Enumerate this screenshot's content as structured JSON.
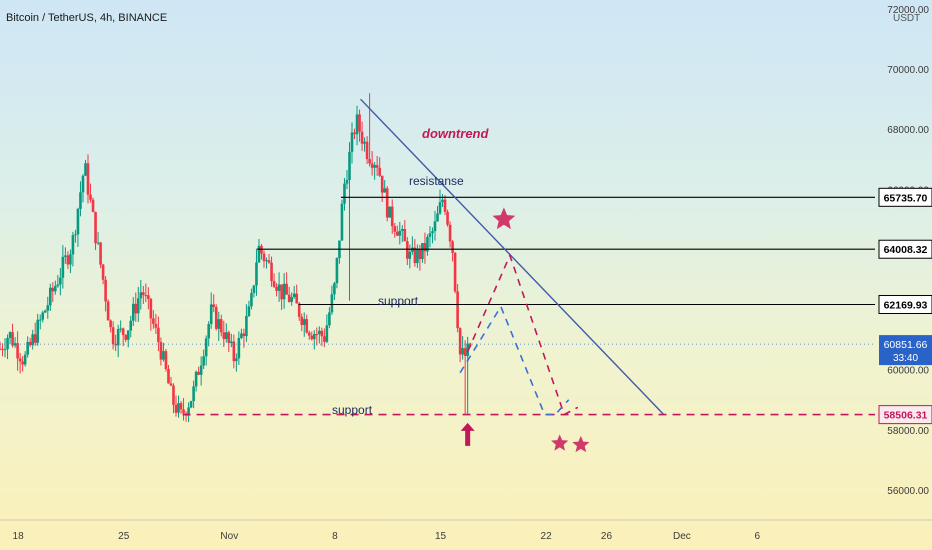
{
  "header": {
    "title": "Bitcoin / TetherUS, 4h, BINANCE",
    "currency": "USDT"
  },
  "chart_data": {
    "type": "candlestick",
    "symbol": "Bitcoin / TetherUS",
    "timeframe": "4h",
    "exchange": "BINANCE",
    "currency": "USDT",
    "y_axis": {
      "ticks": [
        56000,
        58000,
        60000,
        62000,
        64000,
        66000,
        68000,
        70000,
        72000
      ],
      "tick_labels": [
        "56000.00",
        "58000.00",
        "60000.00",
        "62000.00",
        "64000.00",
        "66000.00",
        "68000.00",
        "70000.00",
        "72000.00"
      ],
      "range": [
        55000,
        72300
      ]
    },
    "x_axis": {
      "tick_labels": [
        "18",
        "25",
        "Nov",
        "8",
        "15",
        "22",
        "26",
        "Dec",
        "6"
      ],
      "tick_days": [
        -14,
        -7,
        0,
        7,
        14,
        21,
        25,
        30,
        35
      ],
      "range_days": [
        -15.2,
        42.8
      ]
    },
    "price_levels": [
      {
        "value": 65735.7,
        "label": "65735.70",
        "color": "#000000",
        "style": "solid"
      },
      {
        "value": 64008.32,
        "label": "64008.32",
        "color": "#000000",
        "style": "solid"
      },
      {
        "value": 62169.93,
        "label": "62169.93",
        "color": "#000000",
        "style": "solid"
      },
      {
        "value": 58506.31,
        "label": "58506.31",
        "color": "#c2185b",
        "style": "dashed"
      }
    ],
    "last_price": {
      "value": 60851.66,
      "label": "60851.66",
      "countdown": "33:40"
    },
    "annotations": {
      "downtrend": "downtrend",
      "resistance": "resistanse",
      "support_upper": "support",
      "support_lower": "support"
    },
    "downtrend_line": {
      "start": {
        "day": 8.7,
        "price": 69000
      },
      "end": {
        "day": 28.8,
        "price": 58506.31
      }
    },
    "projection_red": [
      {
        "day": 15.8,
        "price": 60600
      },
      {
        "day": 18.6,
        "price": 63800
      },
      {
        "day": 22.2,
        "price": 58506.31
      },
      {
        "day": 23.1,
        "price": 58750
      }
    ],
    "projection_blue": [
      {
        "day": 15.3,
        "price": 59900
      },
      {
        "day": 18.0,
        "price": 62100
      },
      {
        "day": 20.9,
        "price": 58506.31
      },
      {
        "day": 21.6,
        "price": 58506.31
      },
      {
        "day": 22.5,
        "price": 59000
      }
    ],
    "stars": [
      {
        "day": 18.2,
        "price": 65000,
        "size": "large"
      },
      {
        "day": 21.9,
        "price": 57550,
        "size": "small"
      },
      {
        "day": 23.3,
        "price": 57500,
        "size": "small"
      }
    ],
    "arrow_up": {
      "day": 15.8,
      "price": 57900
    },
    "colors": {
      "up": "#089981",
      "down": "#f23645",
      "trendline": "#3f5aa8",
      "accent": "#c2185b",
      "projection_blue": "#3a6fd8",
      "stars": "#d2386a",
      "last_price_box": "#2a63c8"
    },
    "key_points": [
      {
        "day": -15.2,
        "price": 60700
      },
      {
        "day": -14.6,
        "price": 61200
      },
      {
        "day": -13.6,
        "price": 60300
      },
      {
        "day": -12.2,
        "price": 62000
      },
      {
        "day": -10.4,
        "price": 64200
      },
      {
        "day": -9.6,
        "price": 66800
      },
      {
        "day": -8.9,
        "price": 64600
      },
      {
        "day": -8.3,
        "price": 62800
      },
      {
        "day": -7.8,
        "price": 61100
      },
      {
        "day": -6.8,
        "price": 61300
      },
      {
        "day": -5.8,
        "price": 62700
      },
      {
        "day": -4.6,
        "price": 60800
      },
      {
        "day": -3.8,
        "price": 59000
      },
      {
        "day": -3.2,
        "price": 58450
      },
      {
        "day": -2.4,
        "price": 59200
      },
      {
        "day": -1.2,
        "price": 61900
      },
      {
        "day": -0.4,
        "price": 61300
      },
      {
        "day": 0.3,
        "price": 60400
      },
      {
        "day": 1.4,
        "price": 62000
      },
      {
        "day": 1.9,
        "price": 64100
      },
      {
        "day": 2.8,
        "price": 63300
      },
      {
        "day": 3.4,
        "price": 62600
      },
      {
        "day": 4.2,
        "price": 62300
      },
      {
        "day": 5.4,
        "price": 61300
      },
      {
        "day": 6.3,
        "price": 61100
      },
      {
        "day": 7.0,
        "price": 62800
      },
      {
        "day": 7.6,
        "price": 66100
      },
      {
        "day": 8.4,
        "price": 68300
      },
      {
        "day": 9.2,
        "price": 67200
      },
      {
        "day": 9.8,
        "price": 66900
      },
      {
        "day": 10.6,
        "price": 65100
      },
      {
        "day": 11.2,
        "price": 64700
      },
      {
        "day": 12.0,
        "price": 63700
      },
      {
        "day": 12.8,
        "price": 63900
      },
      {
        "day": 13.6,
        "price": 64700
      },
      {
        "day": 14.2,
        "price": 65800
      },
      {
        "day": 14.8,
        "price": 64000
      },
      {
        "day": 15.3,
        "price": 60500
      },
      {
        "day": 15.7,
        "price": 60450
      },
      {
        "day": 16.0,
        "price": 60851.66
      }
    ]
  }
}
